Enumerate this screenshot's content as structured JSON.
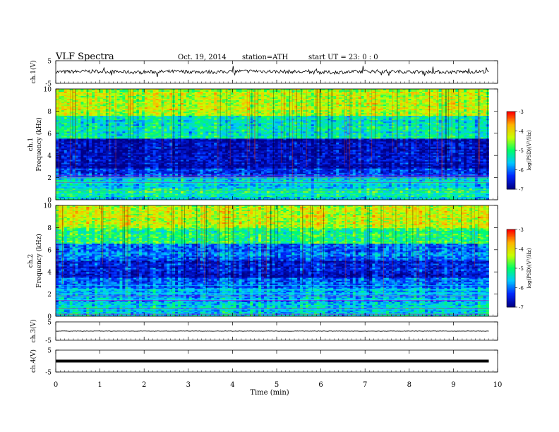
{
  "header": {
    "title": "VLF  Spectra",
    "date": "Oct. 19, 2014",
    "station": "station=ATH",
    "start": "start  UT  =    23: 0  : 0"
  },
  "x_axis": {
    "label": "Time  (min)",
    "ticks": [
      "0",
      "1",
      "2",
      "3",
      "4",
      "5",
      "6",
      "7",
      "8",
      "9",
      "10"
    ]
  },
  "colorbar": {
    "label": "log(PSD)(V²/Hz)",
    "ticks": [
      "-3",
      "-4",
      "-5",
      "-6",
      "-7"
    ],
    "colors": [
      "#ff0000",
      "#ff8800",
      "#ffff00",
      "#00ff66",
      "#00ffff",
      "#0066ff",
      "#000088"
    ]
  },
  "panels": [
    {
      "id": "ch1v",
      "ylabel": "ch.1(V)",
      "ticks": [
        "5",
        "-5"
      ]
    },
    {
      "id": "ch1spec",
      "ylabel_top": "ch.1",
      "ylabel": "Frequency  (kHz)",
      "ticks": [
        "10",
        "8",
        "6",
        "4",
        "2",
        "0"
      ]
    },
    {
      "id": "ch2spec",
      "ylabel_top": "ch.2",
      "ylabel": "Frequency  (kHz)",
      "ticks": [
        "10",
        "8",
        "6",
        "4",
        "2",
        "0"
      ]
    },
    {
      "id": "ch3v",
      "ylabel": "ch.3(V)",
      "ticks": [
        "5",
        "-5"
      ]
    },
    {
      "id": "ch4v",
      "ylabel": "ch.4(V)",
      "ticks": [
        "5",
        "-5"
      ]
    }
  ],
  "chart_data": [
    {
      "type": "line",
      "title": "ch.1(V)",
      "xlabel": "Time  (min)",
      "ylabel": "ch.1(V)",
      "xlim": [
        0,
        10
      ],
      "ylim": [
        -5,
        5
      ],
      "x_end": 9.8,
      "series": [
        {
          "values": [
            0.0,
            0.3,
            -0.1,
            0.2,
            0.0,
            0.4,
            0.1,
            -0.2,
            0.3,
            0.1,
            0.0,
            0.2
          ]
        }
      ]
    },
    {
      "type": "heatmap",
      "title": "ch.1 Frequency (kHz)",
      "xlabel": "Time  (min)",
      "ylabel": "Frequency  (kHz)",
      "xlim": [
        0,
        10
      ],
      "ylim": [
        0,
        10
      ],
      "colorscale": {
        "label": "log(PSD)(V²/Hz)",
        "range": [
          -7,
          -3
        ]
      },
      "frequency_bands_kHz": [
        [
          0,
          0.3
        ],
        [
          0.3,
          1
        ],
        [
          1,
          2
        ],
        [
          2,
          2.8
        ],
        [
          2.8,
          5.5
        ],
        [
          5.5,
          7.5
        ],
        [
          7.5,
          10
        ]
      ],
      "mean_logPSD": [
        -5.5,
        -5.2,
        -5.6,
        -6.3,
        -6.8,
        -5.4,
        -4.4
      ]
    },
    {
      "type": "heatmap",
      "title": "ch.2 Frequency (kHz)",
      "xlabel": "Time  (min)",
      "ylabel": "Frequency  (kHz)",
      "xlim": [
        0,
        10
      ],
      "ylim": [
        0,
        10
      ],
      "colorscale": {
        "label": "log(PSD)(V²/Hz)",
        "range": [
          -7,
          -3
        ]
      },
      "frequency_bands_kHz": [
        [
          0,
          1
        ],
        [
          1,
          2.5
        ],
        [
          2.5,
          3.5
        ],
        [
          3.5,
          5
        ],
        [
          5,
          6.5
        ],
        [
          6.5,
          8
        ],
        [
          8,
          10
        ]
      ],
      "mean_logPSD": [
        -5.4,
        -5.7,
        -6.0,
        -6.5,
        -6.0,
        -5.0,
        -4.3
      ]
    },
    {
      "type": "line",
      "title": "ch.3(V)",
      "xlabel": "Time  (min)",
      "ylabel": "ch.3(V)",
      "xlim": [
        0,
        10
      ],
      "ylim": [
        -5,
        5
      ],
      "x_end": 9.8,
      "series": [
        {
          "values": [
            0.0,
            0.0,
            0.0,
            0.0,
            0.0,
            0.0,
            0.0,
            0.0,
            0.0,
            0.0,
            0.0
          ]
        }
      ]
    },
    {
      "type": "line",
      "title": "ch.4(V)",
      "xlabel": "Time  (min)",
      "ylabel": "ch.4(V)",
      "xlim": [
        0,
        10
      ],
      "ylim": [
        -5,
        5
      ],
      "x_end": 9.8,
      "series": [
        {
          "values": [
            0.0,
            0.0,
            0.0,
            0.0,
            0.0,
            0.0,
            0.0,
            0.0,
            0.0,
            0.0,
            0.0
          ]
        }
      ]
    }
  ]
}
